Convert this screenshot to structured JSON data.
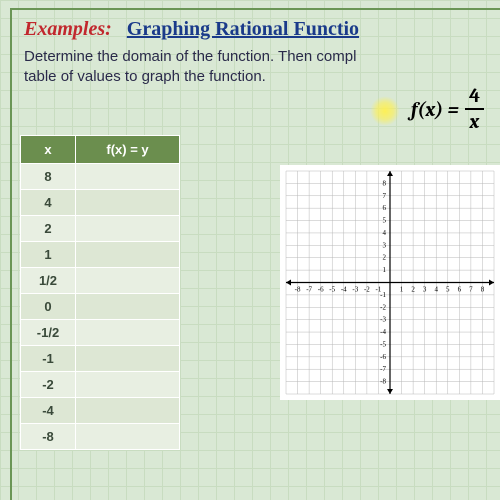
{
  "title": {
    "examples": "Examples:",
    "subject": "Graphing Rational Functio"
  },
  "prompt": {
    "line1": "Determine the domain of the function.   Then compl",
    "line2": "table of values to graph the function."
  },
  "formula": {
    "lhs": "f(x) =",
    "num": "4",
    "den": "x"
  },
  "table": {
    "headers": [
      "x",
      "f(x) = y"
    ],
    "rows": [
      [
        "8",
        ""
      ],
      [
        "4",
        ""
      ],
      [
        "2",
        ""
      ],
      [
        "1",
        ""
      ],
      [
        "1/2",
        ""
      ],
      [
        "0",
        ""
      ],
      [
        "-1/2",
        ""
      ],
      [
        "-1",
        ""
      ],
      [
        "-2",
        ""
      ],
      [
        "-4",
        ""
      ],
      [
        "-8",
        ""
      ]
    ]
  },
  "chart": {
    "type": "cartesian-grid",
    "xlim": [
      -9,
      9
    ],
    "ylim": [
      -9,
      9
    ],
    "xtick_step": 1,
    "ytick_step": 1,
    "x_labels": [
      -8,
      -7,
      -6,
      -5,
      -4,
      -3,
      -2,
      -1,
      1,
      2,
      3,
      4,
      5,
      6,
      7,
      8
    ],
    "y_labels": [
      -8,
      -7,
      -6,
      -5,
      -4,
      -3,
      -2,
      -1,
      1,
      2,
      3,
      4,
      5,
      6,
      7,
      8
    ],
    "grid_color": "#b8b8b8",
    "axis_color": "#000000",
    "tick_color": "#000000",
    "label_fontsize": 7,
    "background_color": "#ffffff",
    "arrowheads": true
  },
  "colors": {
    "page_bg": "#d9e8d4",
    "grid_line": "#c8dcc0",
    "border_green": "#6a9655",
    "title_red": "#c1272d",
    "title_blue": "#1a3a8a",
    "table_header": "#6b8e4e",
    "table_row_a": "#e8efe2",
    "table_row_b": "#dde7d4"
  }
}
